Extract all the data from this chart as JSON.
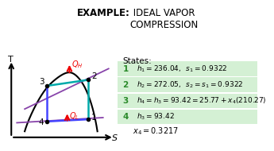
{
  "bg_color": "#f0f0f0",
  "title_bold": "EXAMPLE:",
  "title_normal": " IDEAL VAPOR\nCOMPRESSION",
  "states_label": "States:",
  "state_items": [
    {
      "num": "1",
      "math": "$h_1 = 236.04,\\;\\; s_1 = 0.9322$"
    },
    {
      "num": "2",
      "math": "$h_2 = 272.05,\\;\\; s_2 = s_1 = 0.9322$"
    },
    {
      "num": "3",
      "math": "$h_4 = h_3 = 93.42 = 25.77 + x_4(210.27)$"
    },
    {
      "num": "4",
      "math": "$h_3 = 93.42$"
    }
  ],
  "x4_text": "$x_4 = 0.3217$",
  "highlight_color": "#d4f0d4",
  "green_color": "#2a8a2a",
  "dome_color": "#000000",
  "purple_color": "#8844aa",
  "cyan_color": "#00aaaa",
  "blue_color": "#4444ff",
  "red_color": "#ee0000",
  "black": "#000000",
  "white": "#ffffff"
}
